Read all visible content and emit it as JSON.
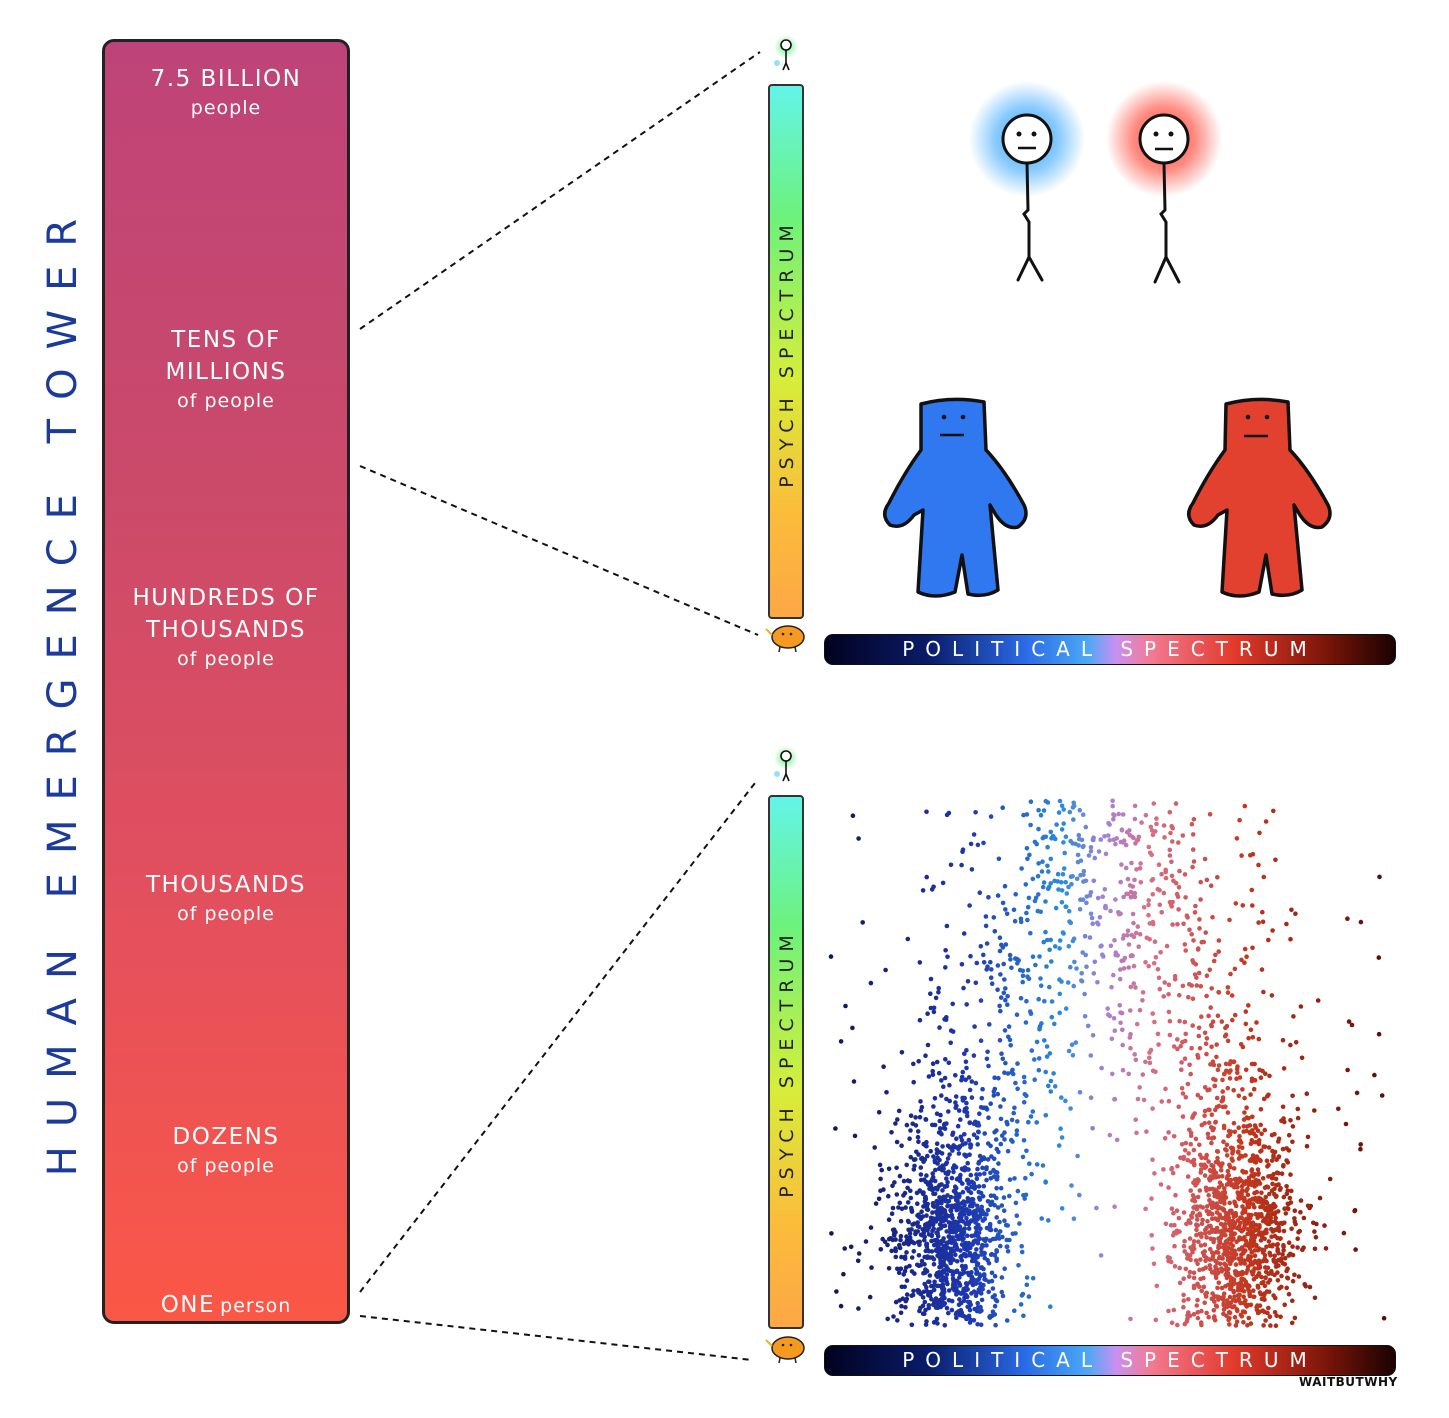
{
  "title": "HUMAN EMERGENCE TOWER",
  "tower": {
    "levels": [
      {
        "big": [
          "7.5 BILLION"
        ],
        "small": "people"
      },
      {
        "big": [
          "TENS OF",
          "MILLIONS"
        ],
        "small": "of people"
      },
      {
        "big": [
          "HUNDREDS OF",
          "THOUSANDS"
        ],
        "small": "of people"
      },
      {
        "big": [
          "THOUSANDS"
        ],
        "small": "of people"
      },
      {
        "big": [
          "DOZENS"
        ],
        "small": "of people"
      }
    ],
    "bottom": {
      "big": "ONE",
      "small": "person"
    },
    "gradient": [
      "#be4378",
      "#fb5746"
    ]
  },
  "psych_label": "PSYCH SPECTRUM",
  "political_label": "POLITICAL SPECTRUM",
  "brand": "WAITBUTWHY",
  "colors": {
    "left_blue": "#2f78f0",
    "right_red": "#e3412f",
    "glow_blue": "#2aa0ff",
    "glow_red": "#ff3322",
    "dots_blue": "#1b2f9a",
    "dots_red": "#b2260c"
  },
  "icons": [
    "stick-figure-glow-icon",
    "orange-creature-icon",
    "blue-giant-icon",
    "red-giant-icon"
  ]
}
